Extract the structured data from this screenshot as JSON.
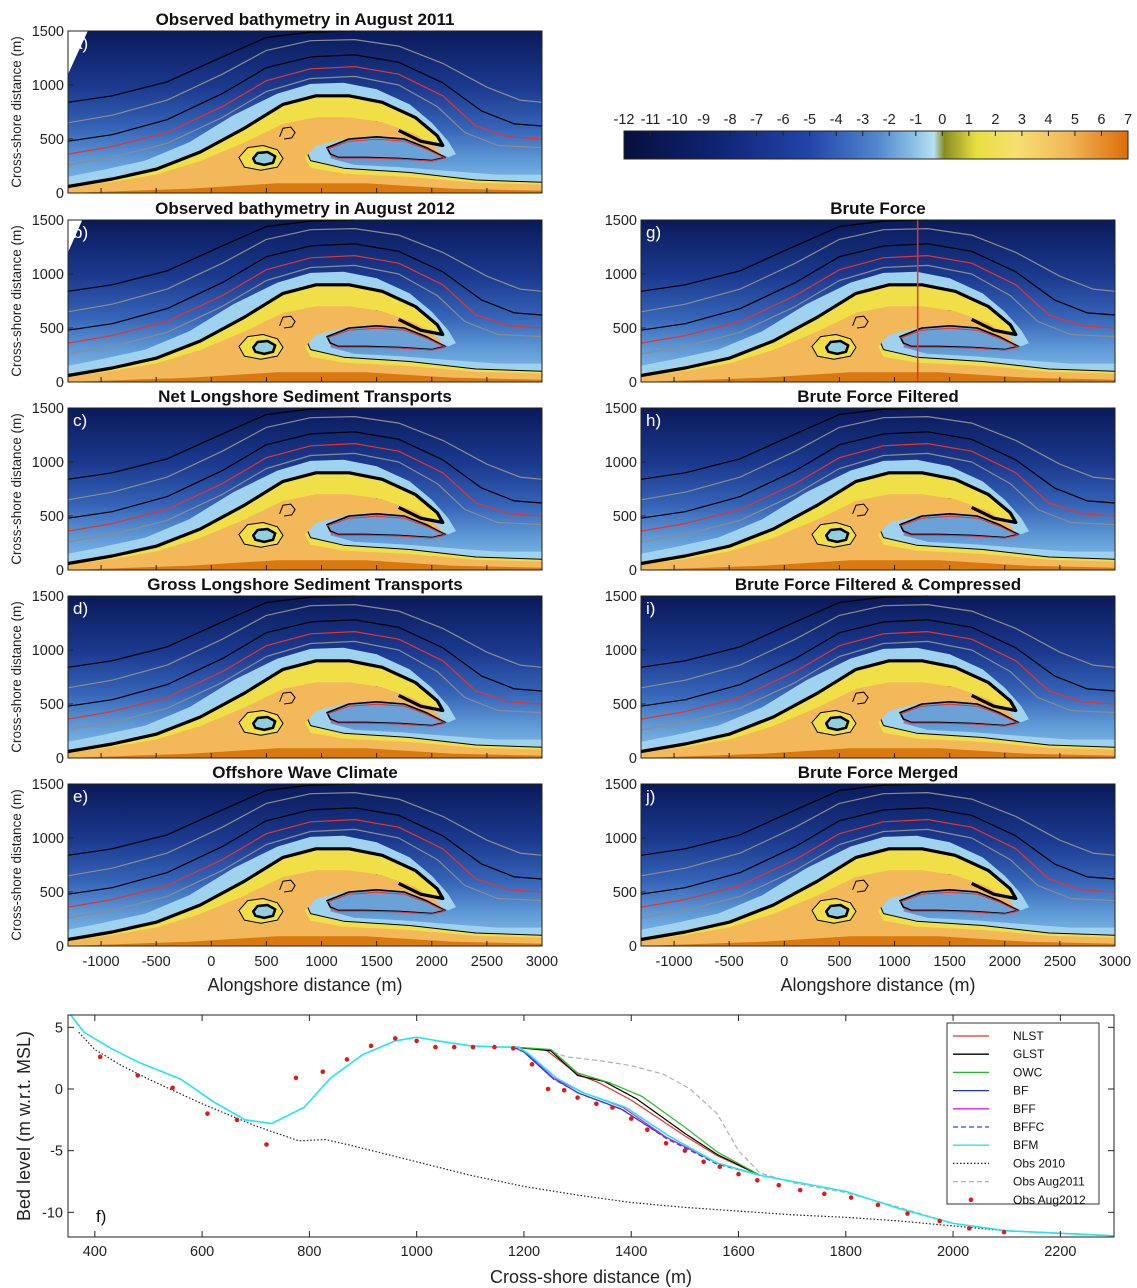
{
  "colors": {
    "deep": "#0b1b5c",
    "mid": "#2848a8",
    "shallow": "#6fa8dc",
    "light": "#a9d6ef",
    "olive": "#9a9a20",
    "sand": "#f1df48",
    "orange": "#f2b35a",
    "dark_orange": "#d9790f",
    "contour_black": "#000000",
    "contour_red": "#e8322e",
    "contour_gray": "#8c8c8c"
  },
  "colorbar": {
    "ticks": [
      "-12",
      "-11",
      "-10",
      "-9",
      "-8",
      "-7",
      "-6",
      "-5",
      "-4",
      "-3",
      "-2",
      "-1",
      "0",
      "1",
      "2",
      "3",
      "4",
      "5",
      "6",
      "7"
    ],
    "range": [
      -12,
      7
    ]
  },
  "map_panels": [
    {
      "letter": "a)",
      "title": "Observed bathymetry in August 2011",
      "variant": "obs2011"
    },
    {
      "letter": "b)",
      "title": "Observed bathymetry in August 2012",
      "variant": "obs2012"
    },
    {
      "letter": "c)",
      "title": "Net Longshore Sediment Transports",
      "variant": "nlst"
    },
    {
      "letter": "d)",
      "title": "Gross Longshore Sediment Transports",
      "variant": "glst"
    },
    {
      "letter": "e)",
      "title": "Offshore Wave Climate",
      "variant": "owc"
    },
    {
      "letter": "g)",
      "title": "Brute Force",
      "variant": "bf"
    },
    {
      "letter": "h)",
      "title": "Brute Force Filtered",
      "variant": "bff"
    },
    {
      "letter": "i)",
      "title": "Brute Force Filtered & Compressed",
      "variant": "bffc"
    },
    {
      "letter": "j)",
      "title": "Brute Force Merged",
      "variant": "bfm"
    }
  ],
  "map_axes": {
    "ylabel": "Cross-shore distance (m)",
    "xlabel": "Alongshore distance (m)",
    "yticks": [
      "0",
      "500",
      "1000",
      "1500"
    ],
    "xticks": [
      "-1000",
      "-500",
      "0",
      "500",
      "1000",
      "1500",
      "2000",
      "2500",
      "3000"
    ],
    "xlim": [
      -1300,
      3000
    ],
    "ylim": [
      0,
      1500
    ],
    "transect_alongshore_m": 1210
  },
  "chart_data": {
    "type": "line",
    "letter": "f)",
    "xlabel": "Cross-shore distance (m)",
    "ylabel": "Bed level (m w.r.t. MSL)",
    "xlim": [
      350,
      2300
    ],
    "ylim": [
      -12,
      6
    ],
    "xticks": [
      "400",
      "600",
      "800",
      "1000",
      "1200",
      "1400",
      "1600",
      "1800",
      "2000",
      "2200"
    ],
    "yticks": [
      "-10",
      "-5",
      "0",
      "5"
    ],
    "legend_position": "top-right",
    "series": [
      {
        "name": "NLST",
        "color": "#e8322e",
        "dash": "solid",
        "points": [
          [
            1180,
            3.4
          ],
          [
            1240,
            3.2
          ],
          [
            1300,
            1.2
          ],
          [
            1340,
            0.5
          ],
          [
            1400,
            -0.9
          ],
          [
            1500,
            -3.8
          ],
          [
            1560,
            -5.4
          ],
          [
            1640,
            -7.0
          ]
        ]
      },
      {
        "name": "GLST",
        "color": "#000000",
        "dash": "solid",
        "points": [
          [
            1180,
            3.4
          ],
          [
            1250,
            3.1
          ],
          [
            1300,
            1.1
          ],
          [
            1350,
            0.6
          ],
          [
            1410,
            -0.8
          ],
          [
            1500,
            -3.6
          ],
          [
            1560,
            -5.3
          ],
          [
            1640,
            -7.0
          ]
        ]
      },
      {
        "name": "OWC",
        "color": "#22bb22",
        "dash": "solid",
        "points": [
          [
            1180,
            3.4
          ],
          [
            1250,
            3.2
          ],
          [
            1300,
            1.3
          ],
          [
            1360,
            0.5
          ],
          [
            1420,
            -0.6
          ],
          [
            1500,
            -3.1
          ],
          [
            1560,
            -5.1
          ],
          [
            1640,
            -7.0
          ]
        ]
      },
      {
        "name": "BF",
        "color": "#2233cc",
        "dash": "solid",
        "points": [
          [
            1180,
            3.4
          ],
          [
            1200,
            3.0
          ],
          [
            1250,
            1.0
          ],
          [
            1300,
            -0.3
          ],
          [
            1380,
            -1.6
          ],
          [
            1460,
            -3.8
          ],
          [
            1560,
            -6.0
          ],
          [
            1640,
            -7.0
          ]
        ]
      },
      {
        "name": "BFF",
        "color": "#dd22dd",
        "dash": "solid",
        "points": [
          [
            1180,
            3.4
          ],
          [
            1205,
            2.9
          ],
          [
            1255,
            0.9
          ],
          [
            1305,
            -0.2
          ],
          [
            1385,
            -1.5
          ],
          [
            1465,
            -3.9
          ],
          [
            1560,
            -6.0
          ],
          [
            1640,
            -7.0
          ]
        ]
      },
      {
        "name": "BFFC",
        "color": "#3344ee",
        "dash": "dashed",
        "points": [
          [
            1180,
            3.4
          ],
          [
            1205,
            2.9
          ],
          [
            1255,
            0.8
          ],
          [
            1305,
            -0.4
          ],
          [
            1385,
            -1.7
          ],
          [
            1465,
            -4.0
          ],
          [
            1560,
            -6.1
          ],
          [
            1640,
            -7.0
          ]
        ]
      },
      {
        "name": "BFM",
        "color": "#22e6ee",
        "dash": "solid",
        "points": [
          [
            355,
            6.0
          ],
          [
            380,
            4.6
          ],
          [
            430,
            3.3
          ],
          [
            480,
            2.2
          ],
          [
            560,
            0.8
          ],
          [
            620,
            -1.0
          ],
          [
            680,
            -2.5
          ],
          [
            730,
            -2.8
          ],
          [
            790,
            -1.5
          ],
          [
            840,
            0.9
          ],
          [
            900,
            2.8
          ],
          [
            960,
            3.9
          ],
          [
            1000,
            4.2
          ],
          [
            1040,
            3.9
          ],
          [
            1100,
            3.5
          ],
          [
            1150,
            3.4
          ],
          [
            1190,
            3.4
          ],
          [
            1210,
            2.8
          ],
          [
            1260,
            0.9
          ],
          [
            1310,
            -0.3
          ],
          [
            1390,
            -1.5
          ],
          [
            1470,
            -3.8
          ],
          [
            1560,
            -6.0
          ],
          [
            1640,
            -7.0
          ],
          [
            1800,
            -8.3
          ],
          [
            1900,
            -9.7
          ],
          [
            2000,
            -10.9
          ],
          [
            2100,
            -11.5
          ],
          [
            2300,
            -11.9
          ]
        ]
      },
      {
        "name": "Obs 2010",
        "color": "#222222",
        "dash": "dotted",
        "points": [
          [
            370,
            4.6
          ],
          [
            400,
            3.2
          ],
          [
            450,
            1.9
          ],
          [
            500,
            0.8
          ],
          [
            600,
            -1.2
          ],
          [
            700,
            -3.0
          ],
          [
            780,
            -4.2
          ],
          [
            830,
            -4.1
          ],
          [
            880,
            -4.6
          ],
          [
            1000,
            -5.9
          ],
          [
            1100,
            -7.0
          ],
          [
            1200,
            -7.9
          ],
          [
            1300,
            -8.6
          ],
          [
            1400,
            -9.2
          ],
          [
            1500,
            -9.6
          ],
          [
            1600,
            -9.9
          ],
          [
            1700,
            -10.2
          ],
          [
            1800,
            -10.4
          ],
          [
            1900,
            -10.7
          ],
          [
            2000,
            -11.1
          ],
          [
            2100,
            -11.5
          ],
          [
            2300,
            -11.9
          ]
        ]
      },
      {
        "name": "Obs Aug2011",
        "color": "#b0b0b0",
        "dash": "dashed",
        "points": [
          [
            1240,
            3.2
          ],
          [
            1280,
            2.6
          ],
          [
            1340,
            2.3
          ],
          [
            1400,
            1.9
          ],
          [
            1460,
            1.2
          ],
          [
            1510,
            0.0
          ],
          [
            1560,
            -2.0
          ],
          [
            1600,
            -5.0
          ],
          [
            1640,
            -6.8
          ],
          [
            1700,
            -7.6
          ],
          [
            1800,
            -8.4
          ],
          [
            1900,
            -9.6
          ],
          [
            2000,
            -10.9
          ],
          [
            2100,
            -11.5
          ],
          [
            2300,
            -11.9
          ]
        ]
      },
      {
        "name": "Obs Aug2012",
        "color": "#e01a1a",
        "dash": "markers",
        "points": [
          [
            410,
            2.6
          ],
          [
            480,
            1.1
          ],
          [
            545,
            0.1
          ],
          [
            610,
            -2.0
          ],
          [
            665,
            -2.5
          ],
          [
            720,
            -4.5
          ],
          [
            775,
            0.9
          ],
          [
            825,
            1.4
          ],
          [
            870,
            2.4
          ],
          [
            915,
            3.5
          ],
          [
            960,
            4.1
          ],
          [
            1000,
            3.9
          ],
          [
            1035,
            3.4
          ],
          [
            1070,
            3.4
          ],
          [
            1105,
            3.4
          ],
          [
            1145,
            3.4
          ],
          [
            1180,
            3.3
          ],
          [
            1215,
            2.0
          ],
          [
            1245,
            0.0
          ],
          [
            1275,
            -0.1
          ],
          [
            1300,
            -0.7
          ],
          [
            1335,
            -1.2
          ],
          [
            1365,
            -1.5
          ],
          [
            1400,
            -2.4
          ],
          [
            1430,
            -3.3
          ],
          [
            1465,
            -4.4
          ],
          [
            1500,
            -5.0
          ],
          [
            1535,
            -5.9
          ],
          [
            1565,
            -6.3
          ],
          [
            1600,
            -6.9
          ],
          [
            1635,
            -7.4
          ],
          [
            1675,
            -7.8
          ],
          [
            1715,
            -8.2
          ],
          [
            1760,
            -8.5
          ],
          [
            1810,
            -8.8
          ],
          [
            1860,
            -9.4
          ],
          [
            1915,
            -10.1
          ],
          [
            1975,
            -10.7
          ],
          [
            2030,
            -11.3
          ],
          [
            2095,
            -11.6
          ]
        ]
      }
    ]
  }
}
